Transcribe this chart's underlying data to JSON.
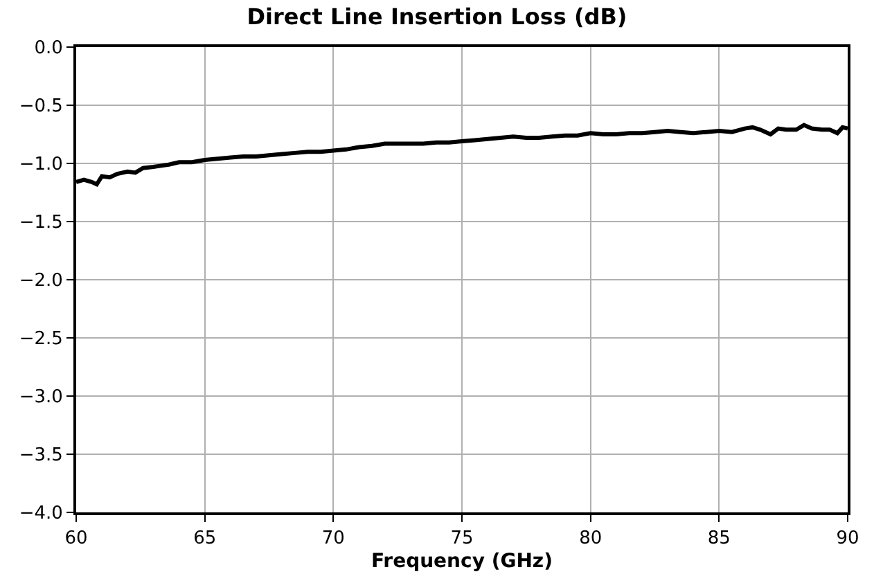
{
  "chart_data": {
    "type": "line",
    "title": "Direct Line Insertion Loss (dB)",
    "xlabel": "Frequency (GHz)",
    "x": [
      60,
      60.3,
      60.6,
      60.8,
      61,
      61.3,
      61.6,
      62,
      62.3,
      62.6,
      63,
      63.3,
      63.6,
      64,
      64.5,
      65,
      65.5,
      66,
      66.5,
      67,
      67.5,
      68,
      68.5,
      69,
      69.5,
      70,
      70.5,
      71,
      71.5,
      72,
      72.5,
      73,
      73.5,
      74,
      74.5,
      75,
      75.5,
      76,
      76.5,
      77,
      77.5,
      78,
      78.5,
      79,
      79.5,
      80,
      80.5,
      81,
      81.5,
      82,
      82.5,
      83,
      83.5,
      84,
      84.5,
      85,
      85.5,
      86,
      86.3,
      86.6,
      87,
      87.3,
      87.6,
      88,
      88.3,
      88.6,
      89,
      89.3,
      89.6,
      89.8,
      90
    ],
    "series": [
      {
        "color": "#000000",
        "values": [
          -1.16,
          -1.14,
          -1.16,
          -1.18,
          -1.11,
          -1.12,
          -1.09,
          -1.07,
          -1.08,
          -1.04,
          -1.03,
          -1.02,
          -1.01,
          -0.99,
          -0.99,
          -0.97,
          -0.96,
          -0.95,
          -0.94,
          -0.94,
          -0.93,
          -0.92,
          -0.91,
          -0.9,
          -0.9,
          -0.89,
          -0.88,
          -0.86,
          -0.85,
          -0.83,
          -0.83,
          -0.83,
          -0.83,
          -0.82,
          -0.82,
          -0.81,
          -0.8,
          -0.79,
          -0.78,
          -0.77,
          -0.78,
          -0.78,
          -0.77,
          -0.76,
          -0.76,
          -0.74,
          -0.75,
          -0.75,
          -0.74,
          -0.74,
          -0.73,
          -0.72,
          -0.73,
          -0.74,
          -0.73,
          -0.72,
          -0.73,
          -0.7,
          -0.69,
          -0.71,
          -0.75,
          -0.7,
          -0.71,
          -0.71,
          -0.67,
          -0.7,
          -0.71,
          -0.71,
          -0.74,
          -0.69,
          -0.7
        ]
      }
    ],
    "xlim": [
      60,
      90
    ],
    "xticks": [
      60,
      65,
      70,
      75,
      80,
      85,
      90
    ],
    "ylim": [
      -4.0,
      0.0
    ],
    "yticks": [
      {
        "value": -4,
        "label": "−4.0"
      },
      {
        "value": -3.5,
        "label": "−3.5"
      },
      {
        "value": -3,
        "label": "−3.0"
      },
      {
        "value": -2.5,
        "label": "−2.5"
      },
      {
        "value": -2,
        "label": "−2.0"
      },
      {
        "value": -1.5,
        "label": "−1.5"
      },
      {
        "value": -1,
        "label": "−1.0"
      },
      {
        "value": -0.5,
        "label": "−0.5"
      },
      {
        "value": 0,
        "label": "0.0"
      }
    ],
    "grid": true,
    "legend": false
  }
}
